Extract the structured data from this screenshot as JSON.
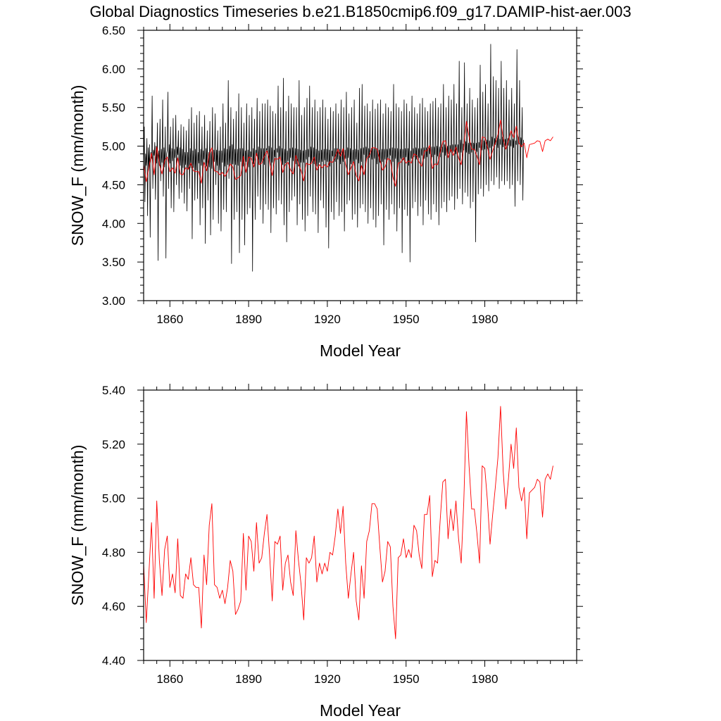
{
  "figure": {
    "title": "Global Diagnostics Timeseries b.e21.B1850cmip6.f09_g17.DAMIP-hist-aer.003"
  },
  "colors": {
    "monthly_line": "#000000",
    "annual_line": "#ff0000",
    "axis": "#000000"
  },
  "chart_data": [
    {
      "type": "line",
      "title": "",
      "xlabel": "Model Year",
      "ylabel": "SNOW_F (mm/month)",
      "xlim": [
        1850,
        2015
      ],
      "ylim": [
        3.0,
        6.5
      ],
      "xticks": [
        1860,
        1890,
        1920,
        1950,
        1980
      ],
      "xtick_labels": [
        "1860",
        "1890",
        "1920",
        "1950",
        "1980"
      ],
      "yticks": [
        3.0,
        3.5,
        4.0,
        4.5,
        5.0,
        5.5,
        6.0,
        6.5
      ],
      "ytick_labels": [
        "3.00",
        "3.50",
        "4.00",
        "4.50",
        "5.00",
        "5.50",
        "6.00",
        "6.50"
      ],
      "grid": false,
      "legend": false,
      "series": [
        {
          "style": "monthly",
          "color": "#000000",
          "x_start": 1850,
          "x_step": 0.25,
          "values": [
            4.72,
            5.25,
            4.28,
            4.9,
            4.75,
            5.1,
            4.1,
            4.98,
            4.72,
            5.02,
            3.82,
            4.92,
            4.84,
            5.65,
            4.45,
            4.95,
            4.88,
            5.05,
            4.31,
            5.0,
            4.78,
            5.3,
            3.52,
            4.94,
            4.75,
            5.35,
            4.55,
            4.96,
            4.79,
            5.6,
            4.35,
            4.98,
            4.73,
            5.25,
            3.55,
            4.9,
            4.95,
            5.7,
            4.45,
            5.02,
            4.78,
            5.25,
            4.2,
            4.97,
            4.81,
            5.36,
            4.15,
            4.96,
            4.85,
            5.4,
            4.5,
            4.99,
            4.89,
            5.2,
            4.32,
            4.98,
            4.75,
            5.28,
            4.4,
            4.96,
            4.72,
            5.25,
            4.26,
            4.92,
            4.76,
            5.2,
            4.16,
            4.92,
            4.7,
            5.35,
            4.45,
            4.97,
            4.72,
            5.5,
            3.8,
            4.94,
            4.72,
            5.3,
            4.3,
            4.96,
            4.69,
            5.4,
            4.32,
            4.92,
            4.78,
            5.45,
            3.98,
            4.96,
            4.75,
            5.25,
            4.2,
            4.94,
            4.83,
            5.4,
            3.74,
            4.97,
            4.74,
            5.2,
            4.3,
            4.92,
            4.73,
            5.32,
            3.85,
            4.93,
            4.71,
            5.5,
            4.05,
            4.95,
            4.8,
            5.42,
            4.5,
            4.95,
            4.75,
            5.2,
            4.0,
            4.94,
            4.69,
            5.25,
            3.9,
            4.94,
            4.79,
            5.55,
            4.18,
            4.97,
            4.74,
            5.3,
            4.15,
            4.96,
            4.76,
            5.85,
            4.58,
            5.0,
            4.77,
            5.5,
            3.48,
            5.02,
            4.77,
            5.35,
            4.05,
            4.96,
            4.76,
            5.45,
            4.15,
            4.96,
            4.75,
            5.68,
            3.62,
            4.97,
            4.8,
            5.5,
            4.05,
            4.97,
            4.74,
            5.3,
            3.72,
            4.94,
            4.8,
            5.55,
            4.12,
            4.95,
            4.73,
            5.4,
            4.2,
            4.93,
            4.86,
            5.5,
            3.38,
            4.97,
            4.77,
            5.35,
            4.05,
            4.95,
            4.88,
            5.62,
            4.35,
            4.99,
            4.77,
            5.45,
            4.18,
            4.97,
            4.8,
            5.55,
            4.0,
            4.97,
            4.76,
            5.55,
            4.25,
            4.97,
            4.95,
            5.6,
            4.18,
            5.0,
            4.8,
            5.52,
            3.88,
            4.98,
            4.79,
            5.45,
            4.2,
            4.95,
            4.86,
            5.42,
            4.12,
            4.97,
            4.92,
            5.78,
            4.3,
            5.0,
            4.84,
            5.5,
            4.25,
            4.97,
            4.76,
            5.88,
            3.98,
            4.96,
            4.78,
            5.45,
            3.76,
            4.94,
            4.81,
            5.65,
            4.15,
            4.97,
            4.85,
            5.55,
            4.3,
            4.98,
            4.81,
            5.5,
            4.35,
            4.97,
            4.77,
            5.5,
            3.98,
            4.96,
            4.74,
            5.85,
            4.25,
            4.95,
            4.79,
            5.4,
            4.05,
            4.94,
            4.79,
            5.5,
            3.9,
            4.95,
            4.83,
            5.62,
            4.1,
            4.96,
            4.86,
            5.78,
            4.35,
            4.99,
            4.8,
            5.5,
            4.15,
            4.98,
            4.77,
            5.6,
            4.12,
            4.96,
            4.74,
            5.45,
            3.88,
            4.94,
            4.79,
            5.5,
            4.3,
            4.95,
            4.8,
            5.6,
            4.2,
            4.96,
            4.82,
            5.5,
            3.95,
            4.96,
            4.8,
            5.35,
            3.68,
            4.95,
            4.74,
            5.5,
            4.15,
            4.94,
            4.87,
            5.45,
            4.05,
            4.97,
            4.8,
            5.55,
            4.28,
            4.97,
            4.83,
            5.42,
            4.1,
            4.96,
            4.77,
            5.6,
            4.15,
            4.95,
            4.8,
            5.5,
            3.9,
            4.95,
            4.84,
            5.7,
            4.25,
            4.98,
            4.85,
            5.42,
            4.3,
            4.97,
            4.77,
            5.5,
            4.05,
            4.95,
            4.8,
            5.6,
            4.12,
            4.96,
            4.83,
            5.3,
            3.95,
            4.95,
            4.78,
            5.75,
            4.2,
            4.97,
            4.8,
            5.8,
            4.25,
            4.98,
            4.89,
            5.52,
            4.15,
            4.99,
            4.83,
            5.55,
            4.0,
            4.97,
            4.85,
            5.45,
            4.2,
            4.97,
            4.83,
            5.6,
            4.05,
            4.97,
            4.84,
            5.48,
            3.95,
            4.97,
            4.77,
            5.55,
            4.1,
            4.95,
            4.79,
            5.6,
            4.25,
            4.96,
            4.8,
            5.42,
            3.72,
            4.96,
            4.83,
            5.55,
            4.18,
            4.96,
            4.85,
            5.5,
            4.05,
            4.97,
            4.88,
            5.45,
            4.25,
            4.98,
            4.8,
            5.8,
            4.12,
            4.97,
            4.84,
            5.55,
            3.9,
            4.97,
            4.79,
            5.5,
            4.2,
            4.96,
            4.84,
            5.45,
            3.62,
            4.96,
            4.82,
            5.6,
            4.18,
            4.97,
            4.86,
            5.55,
            4.1,
            4.97,
            4.75,
            5.45,
            3.5,
            4.94,
            4.84,
            5.65,
            4.2,
            4.97,
            4.86,
            5.5,
            4.28,
            4.98,
            4.83,
            5.42,
            4.1,
            4.97,
            4.85,
            5.55,
            4.22,
            4.97,
            4.88,
            5.62,
            3.98,
            4.98,
            4.84,
            5.5,
            4.3,
            4.98,
            4.86,
            5.45,
            4.12,
            4.98,
            4.9,
            5.55,
            4.05,
            4.99,
            4.86,
            5.58,
            4.25,
            4.99,
            4.89,
            5.62,
            4.15,
            5.0,
            4.87,
            5.5,
            3.98,
            4.99,
            4.86,
            5.55,
            4.2,
            4.99,
            4.92,
            5.8,
            4.28,
            5.02,
            4.88,
            5.5,
            4.15,
            5.0,
            4.9,
            5.65,
            4.3,
            5.01,
            4.92,
            5.6,
            4.35,
            5.02,
            4.93,
            5.8,
            4.18,
            5.02,
            4.9,
            5.55,
            4.32,
            5.02,
            4.92,
            6.1,
            4.45,
            5.08,
            4.92,
            5.5,
            4.25,
            5.03,
            4.95,
            6.08,
            4.4,
            5.06,
            4.92,
            5.55,
            4.35,
            5.04,
            4.9,
            5.75,
            4.2,
            5.04,
            4.92,
            5.6,
            4.28,
            5.04,
            4.95,
            5.5,
            3.76,
            5.04,
            4.93,
            5.62,
            4.38,
            5.05,
            4.98,
            6.05,
            4.45,
            5.08,
            4.95,
            5.7,
            4.35,
            5.07,
            4.96,
            5.8,
            4.5,
            5.08,
            4.97,
            5.55,
            4.42,
            5.07,
            4.98,
            6.32,
            4.55,
            5.12,
            5.0,
            5.9,
            4.5,
            5.1,
            5.02,
            5.85,
            4.6,
            5.11,
            4.98,
            5.75,
            4.45,
            5.09,
            5.02,
            6.1,
            4.55,
            5.12,
            4.99,
            5.75,
            4.5,
            5.09,
            5.0,
            5.85,
            4.55,
            5.1,
            5.01,
            5.6,
            4.45,
            5.08,
            5.0,
            5.75,
            4.5,
            5.09,
            4.98,
            5.55,
            4.22,
            5.07,
            5.02,
            6.25,
            4.55,
            5.12,
            5.03,
            5.85,
            4.5,
            5.11,
            5.0,
            5.5,
            4.3,
            5.08
          ]
        },
        {
          "style": "annual",
          "color": "#ff0000",
          "x_start": 1850,
          "x_step": 1,
          "values": [
            4.76,
            4.54,
            4.72,
            4.91,
            4.63,
            4.99,
            4.77,
            4.64,
            4.81,
            4.86,
            4.67,
            4.72,
            4.65,
            4.85,
            4.64,
            4.63,
            4.72,
            4.7,
            4.78,
            4.68,
            4.67,
            4.67,
            4.52,
            4.79,
            4.68,
            4.9,
            4.98,
            4.68,
            4.67,
            4.63,
            4.66,
            4.61,
            4.67,
            4.77,
            4.73,
            4.57,
            4.59,
            4.62,
            4.87,
            4.66,
            4.86,
            4.84,
            4.73,
            4.91,
            4.76,
            4.78,
            4.87,
            4.94,
            4.79,
            4.62,
            4.84,
            4.83,
            4.86,
            4.66,
            4.76,
            4.79,
            4.69,
            4.64,
            4.88,
            4.77,
            4.68,
            4.55,
            4.78,
            4.76,
            4.78,
            4.86,
            4.69,
            4.76,
            4.72,
            4.76,
            4.73,
            4.8,
            4.79,
            4.86,
            4.96,
            4.87,
            4.97,
            4.76,
            4.63,
            4.72,
            4.8,
            4.62,
            4.55,
            4.75,
            4.63,
            4.84,
            4.88,
            4.98,
            4.98,
            4.96,
            4.82,
            4.69,
            4.73,
            4.84,
            4.82,
            4.6,
            4.48,
            4.78,
            4.79,
            4.85,
            4.78,
            4.81,
            4.78,
            4.9,
            4.88,
            4.79,
            4.74,
            4.94,
            4.94,
            5.01,
            4.71,
            4.77,
            4.76,
            4.92,
            5.06,
            5.07,
            4.85,
            4.96,
            4.88,
            4.99,
            4.85,
            4.76,
            4.99,
            5.32,
            5.12,
            4.96,
            4.96,
            4.87,
            4.76,
            5.12,
            5.11,
            4.99,
            4.83,
            4.94,
            5.04,
            5.15,
            5.34,
            5.1,
            4.96,
            5.07,
            5.2,
            5.11,
            5.26,
            5.04,
            4.99,
            5.04,
            4.85,
            5.02,
            5.03,
            5.04,
            5.07,
            5.06,
            4.93,
            5.07,
            5.09,
            5.07,
            5.12
          ]
        }
      ]
    },
    {
      "type": "line",
      "title": "",
      "xlabel": "Model Year",
      "ylabel": "SNOW_F (mm/month)",
      "xlim": [
        1850,
        2015
      ],
      "ylim": [
        4.4,
        5.4
      ],
      "xticks": [
        1860,
        1890,
        1920,
        1950,
        1980
      ],
      "xtick_labels": [
        "1860",
        "1890",
        "1920",
        "1950",
        "1980"
      ],
      "yticks": [
        4.4,
        4.6,
        4.8,
        5.0,
        5.2,
        5.4
      ],
      "ytick_labels": [
        "4.40",
        "4.60",
        "4.80",
        "5.00",
        "5.20",
        "5.40"
      ],
      "grid": false,
      "legend": false,
      "series": [
        {
          "style": "annual",
          "color": "#ff0000",
          "x_start": 1850,
          "x_step": 1,
          "values": [
            4.76,
            4.54,
            4.72,
            4.91,
            4.63,
            4.99,
            4.77,
            4.64,
            4.81,
            4.86,
            4.67,
            4.72,
            4.65,
            4.85,
            4.64,
            4.63,
            4.72,
            4.7,
            4.78,
            4.68,
            4.67,
            4.67,
            4.52,
            4.79,
            4.68,
            4.9,
            4.98,
            4.68,
            4.67,
            4.63,
            4.66,
            4.61,
            4.67,
            4.77,
            4.73,
            4.57,
            4.59,
            4.62,
            4.87,
            4.66,
            4.86,
            4.84,
            4.73,
            4.91,
            4.76,
            4.78,
            4.87,
            4.94,
            4.79,
            4.62,
            4.84,
            4.83,
            4.86,
            4.66,
            4.76,
            4.79,
            4.69,
            4.64,
            4.88,
            4.77,
            4.68,
            4.55,
            4.78,
            4.76,
            4.78,
            4.86,
            4.69,
            4.76,
            4.72,
            4.76,
            4.73,
            4.8,
            4.79,
            4.86,
            4.96,
            4.87,
            4.97,
            4.76,
            4.63,
            4.72,
            4.8,
            4.62,
            4.55,
            4.75,
            4.63,
            4.84,
            4.88,
            4.98,
            4.98,
            4.96,
            4.82,
            4.69,
            4.73,
            4.84,
            4.82,
            4.6,
            4.48,
            4.78,
            4.79,
            4.85,
            4.78,
            4.81,
            4.78,
            4.9,
            4.88,
            4.79,
            4.74,
            4.94,
            4.94,
            5.01,
            4.71,
            4.77,
            4.76,
            4.92,
            5.06,
            5.07,
            4.85,
            4.96,
            4.88,
            4.99,
            4.85,
            4.76,
            4.99,
            5.32,
            5.12,
            4.96,
            4.96,
            4.87,
            4.76,
            5.12,
            5.11,
            4.99,
            4.83,
            4.94,
            5.04,
            5.15,
            5.34,
            5.1,
            4.96,
            5.07,
            5.2,
            5.11,
            5.26,
            5.04,
            4.99,
            5.04,
            4.85,
            5.02,
            5.03,
            5.04,
            5.07,
            5.06,
            4.93,
            5.07,
            5.09,
            5.07,
            5.12
          ]
        }
      ]
    }
  ]
}
